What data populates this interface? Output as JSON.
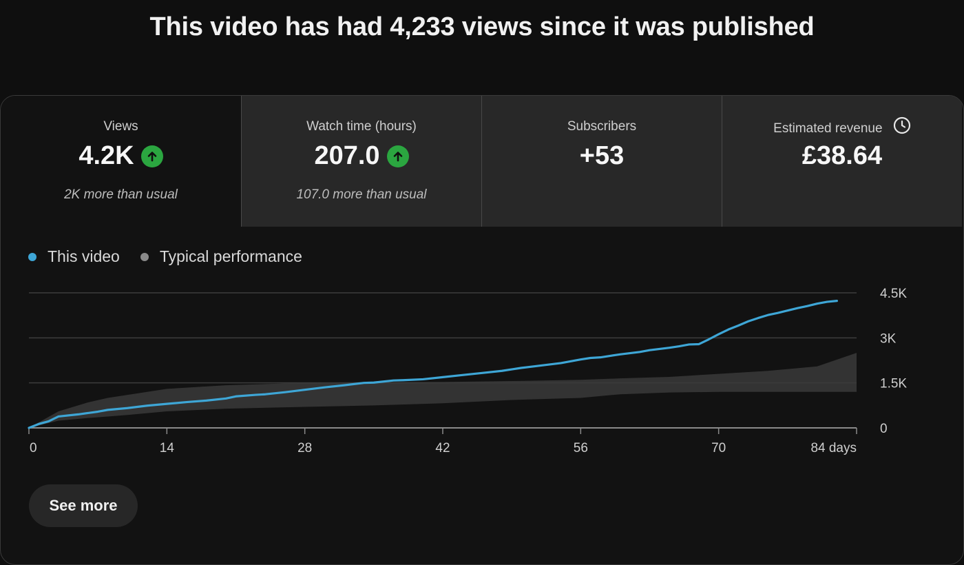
{
  "headline": "This video has had 4,233 views since it was published",
  "metrics": [
    {
      "label": "Views",
      "value": "4.2K",
      "note": "2K more than usual",
      "trend": "up-arrow-icon"
    },
    {
      "label": "Watch time (hours)",
      "value": "207.0",
      "note": "107.0 more than usual",
      "trend": "up-arrow-icon"
    },
    {
      "label": "Subscribers",
      "value": "+53",
      "note": ""
    },
    {
      "label": "Estimated revenue",
      "value": "£38.64",
      "note": "",
      "icon": "clock-icon"
    }
  ],
  "colors": {
    "this_video": "#3ea6d6",
    "typical": "#8a8a8a",
    "up_badge": "#2ba640"
  },
  "chart_data": {
    "type": "line",
    "legend": [
      "This video",
      "Typical performance"
    ],
    "legend_position": "top-left",
    "x_ticks": [
      "0",
      "14",
      "28",
      "42",
      "56",
      "70",
      "84 days"
    ],
    "y_ticks": [
      "0",
      "1.5K",
      "3K",
      "4.5K"
    ],
    "xlim": [
      0,
      84
    ],
    "ylim": [
      0,
      4500
    ],
    "grid": true,
    "series": [
      {
        "name": "This video",
        "x": [
          0,
          1,
          2,
          3,
          5,
          7,
          8,
          10,
          12,
          14,
          16,
          18,
          20,
          21,
          23,
          24,
          26,
          28,
          30,
          32,
          34,
          35,
          37,
          38,
          40,
          42,
          44,
          46,
          48,
          49,
          50,
          52,
          54,
          56,
          57,
          58,
          60,
          62,
          63,
          65,
          66,
          67,
          68,
          69,
          70,
          71,
          72,
          73,
          74,
          75,
          76,
          77,
          78,
          79,
          80,
          81,
          82
        ],
        "y": [
          0,
          130,
          220,
          380,
          450,
          540,
          600,
          660,
          740,
          800,
          860,
          910,
          980,
          1050,
          1100,
          1120,
          1190,
          1270,
          1350,
          1420,
          1500,
          1510,
          1580,
          1590,
          1620,
          1690,
          1760,
          1830,
          1900,
          1950,
          2000,
          2080,
          2160,
          2280,
          2330,
          2350,
          2450,
          2530,
          2590,
          2670,
          2720,
          2780,
          2790,
          2950,
          3120,
          3280,
          3410,
          3550,
          3660,
          3760,
          3830,
          3910,
          3990,
          4060,
          4140,
          4200,
          4233
        ]
      }
    ],
    "typical_band": {
      "name": "Typical performance",
      "x": [
        0,
        3,
        6,
        8,
        10,
        12,
        14,
        20,
        28,
        35,
        42,
        49,
        56,
        60,
        65,
        70,
        75,
        80,
        84
      ],
      "lower": [
        0,
        240,
        330,
        380,
        430,
        490,
        550,
        640,
        700,
        750,
        820,
        930,
        1000,
        1120,
        1180,
        1200,
        1200,
        1200,
        1200
      ],
      "upper": [
        0,
        550,
        850,
        1000,
        1100,
        1200,
        1300,
        1420,
        1500,
        1530,
        1530,
        1560,
        1600,
        1650,
        1700,
        1800,
        1900,
        2050,
        2500
      ]
    }
  },
  "see_more_label": "See more"
}
